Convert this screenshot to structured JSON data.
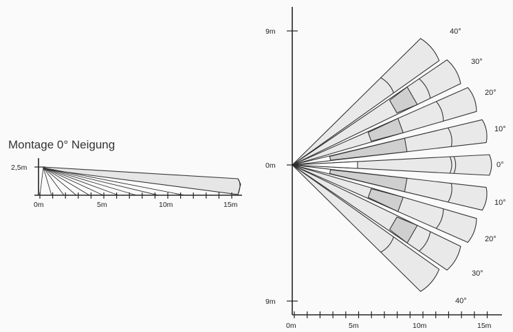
{
  "side_view": {
    "title": "Montage 0° Neigung",
    "height_label": "2,5m",
    "x_labels": [
      "0m",
      "5m",
      "10m",
      "15m"
    ]
  },
  "top_view": {
    "y_labels": {
      "top": "9m",
      "middle": "0m",
      "bottom": "9m"
    },
    "x_labels": [
      "0m",
      "5m",
      "10m",
      "15m"
    ],
    "angle_labels_upper": [
      "40°",
      "30°",
      "20°",
      "10°",
      "0°"
    ],
    "angle_labels_lower": [
      "10°",
      "20°",
      "30°",
      "40°"
    ]
  }
}
